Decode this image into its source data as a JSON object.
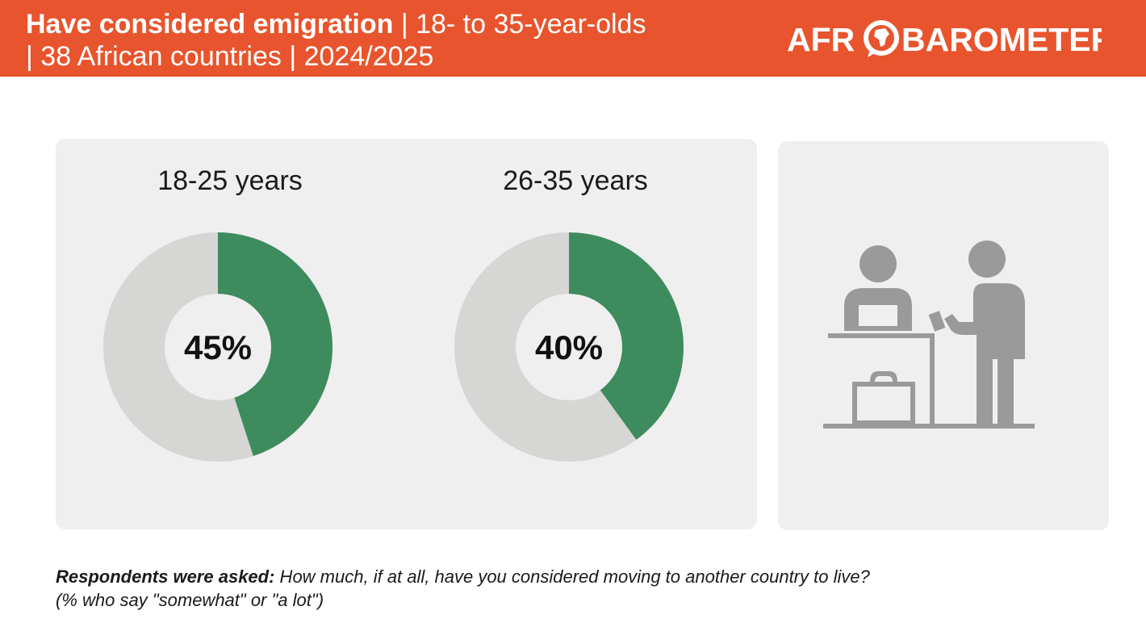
{
  "header": {
    "title_bold": "Have considered emigration",
    "title_rest_1": " | 18- to 35-year-olds",
    "title_rest_2": "| 38 African countries | 2024/2025",
    "logo_text_before": "AFR",
    "logo_text_after": "BAROMETER",
    "logo_icon": "africa-speech-bubble-icon",
    "background_color": "#e8542d"
  },
  "chart_data": {
    "type": "pie",
    "charts": [
      {
        "label": "18-25 years",
        "value": 45,
        "value_label": "45%"
      },
      {
        "label": "26-35 years",
        "value": 40,
        "value_label": "40%"
      }
    ],
    "colors": {
      "highlight": "#3e8b5e",
      "remainder": "#d6d6d4",
      "center": "#efefef"
    }
  },
  "illustration": {
    "icon": "emigration-counter-icon",
    "color": "#9a9a9a"
  },
  "footnote": {
    "lead": "Respondents were asked:",
    "question": " How much, if at all, have you considered moving to another country to live?",
    "note": "(% who say \"somewhat\" or \"a lot\")"
  }
}
